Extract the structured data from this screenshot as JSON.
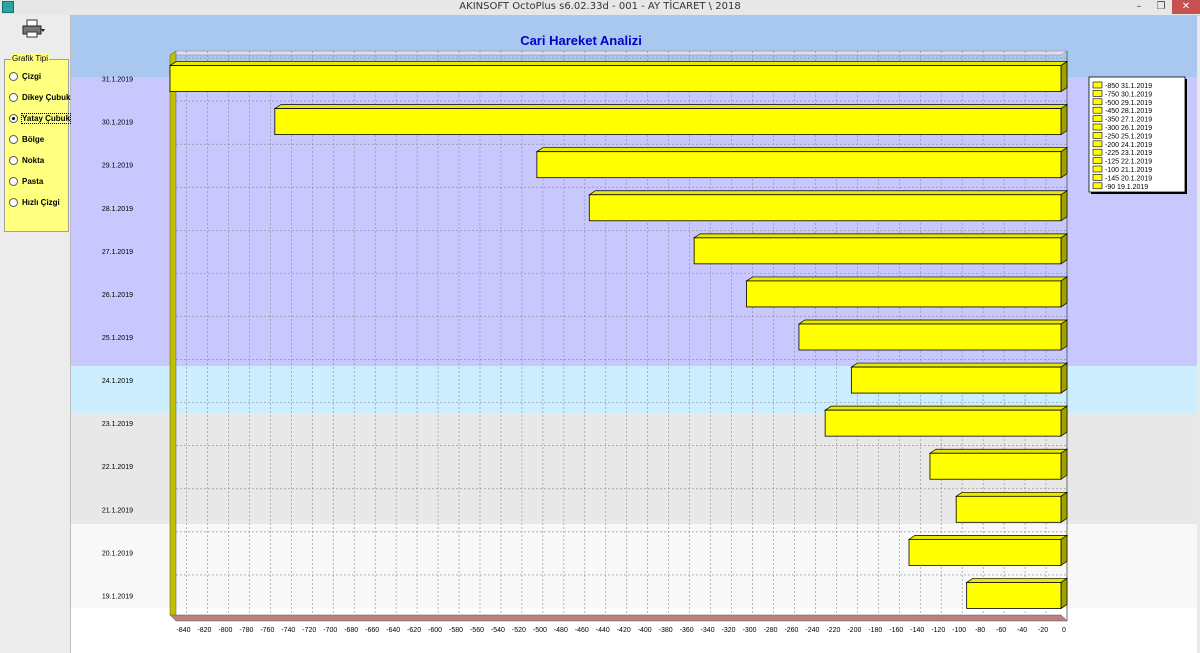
{
  "window": {
    "title": "AKINSOFT OctoPlus s6.02.33d  -  001 - AY TİCARET \\ 2018",
    "minimize_glyph": "–",
    "maximize_glyph": "❐",
    "close_glyph": "✕"
  },
  "sidebar": {
    "group_title": "Grafik Tipi",
    "options": [
      {
        "label": "Çizgi",
        "selected": false
      },
      {
        "label": "Dikey Çubuk",
        "selected": false
      },
      {
        "label": "Yatay Çubuk",
        "selected": true
      },
      {
        "label": "Bölge",
        "selected": false
      },
      {
        "label": "Nokta",
        "selected": false
      },
      {
        "label": "Pasta",
        "selected": false
      },
      {
        "label": "Hızlı Çizgi",
        "selected": false
      }
    ],
    "print_icon": "printer-icon"
  },
  "chart_data": {
    "type": "bar",
    "orientation": "horizontal",
    "title": "Cari Hareket Analizi",
    "categories": [
      "31.1.2019",
      "30.1.2019",
      "29.1.2019",
      "28.1.2019",
      "27.1.2019",
      "26.1.2019",
      "25.1.2019",
      "24.1.2019",
      "23.1.2019",
      "22.1.2019",
      "21.1.2019",
      "20.1.2019",
      "19.1.2019"
    ],
    "values": [
      -850,
      -750,
      -500,
      -450,
      -350,
      -300,
      -250,
      -200,
      -225,
      -125,
      -100,
      -145,
      -90
    ],
    "legend": [
      "-850 31.1.2019",
      "-750 30.1.2019",
      "-500 29.1.2019",
      "-450 28.1.2019",
      "-350 27.1.2019",
      "-300 26.1.2019",
      "-250 25.1.2019",
      "-200 24.1.2019",
      "-225 23.1.2019",
      "-125 22.1.2019",
      "-100 21.1.2019",
      "-145 20.1.2019",
      "-90 19.1.2019"
    ],
    "legend_position": "top-right",
    "xticks": [
      "-840",
      "-820",
      "-800",
      "-780",
      "-760",
      "-740",
      "-720",
      "-700",
      "-680",
      "-660",
      "-640",
      "-620",
      "-600",
      "-580",
      "-560",
      "-540",
      "-520",
      "-500",
      "-480",
      "-460",
      "-440",
      "-420",
      "-400",
      "-380",
      "-360",
      "-340",
      "-320",
      "-300",
      "-280",
      "-260",
      "-240",
      "-220",
      "-200",
      "-180",
      "-160",
      "-140",
      "-120",
      "-100",
      "-80",
      "-60",
      "-40",
      "-20",
      "0"
    ],
    "xlim": [
      -850,
      0
    ],
    "grid": true,
    "bar_color": "#ffff00",
    "bg_colors": {
      "title_band": "#a8c8f0",
      "purple_band": "#c8c8ff",
      "cyan_band": "#cceeff",
      "grey_band": "#e8e8e8",
      "light_band": "#f8f8f8",
      "floor": "#c08080",
      "wall": "#c0c000"
    }
  }
}
